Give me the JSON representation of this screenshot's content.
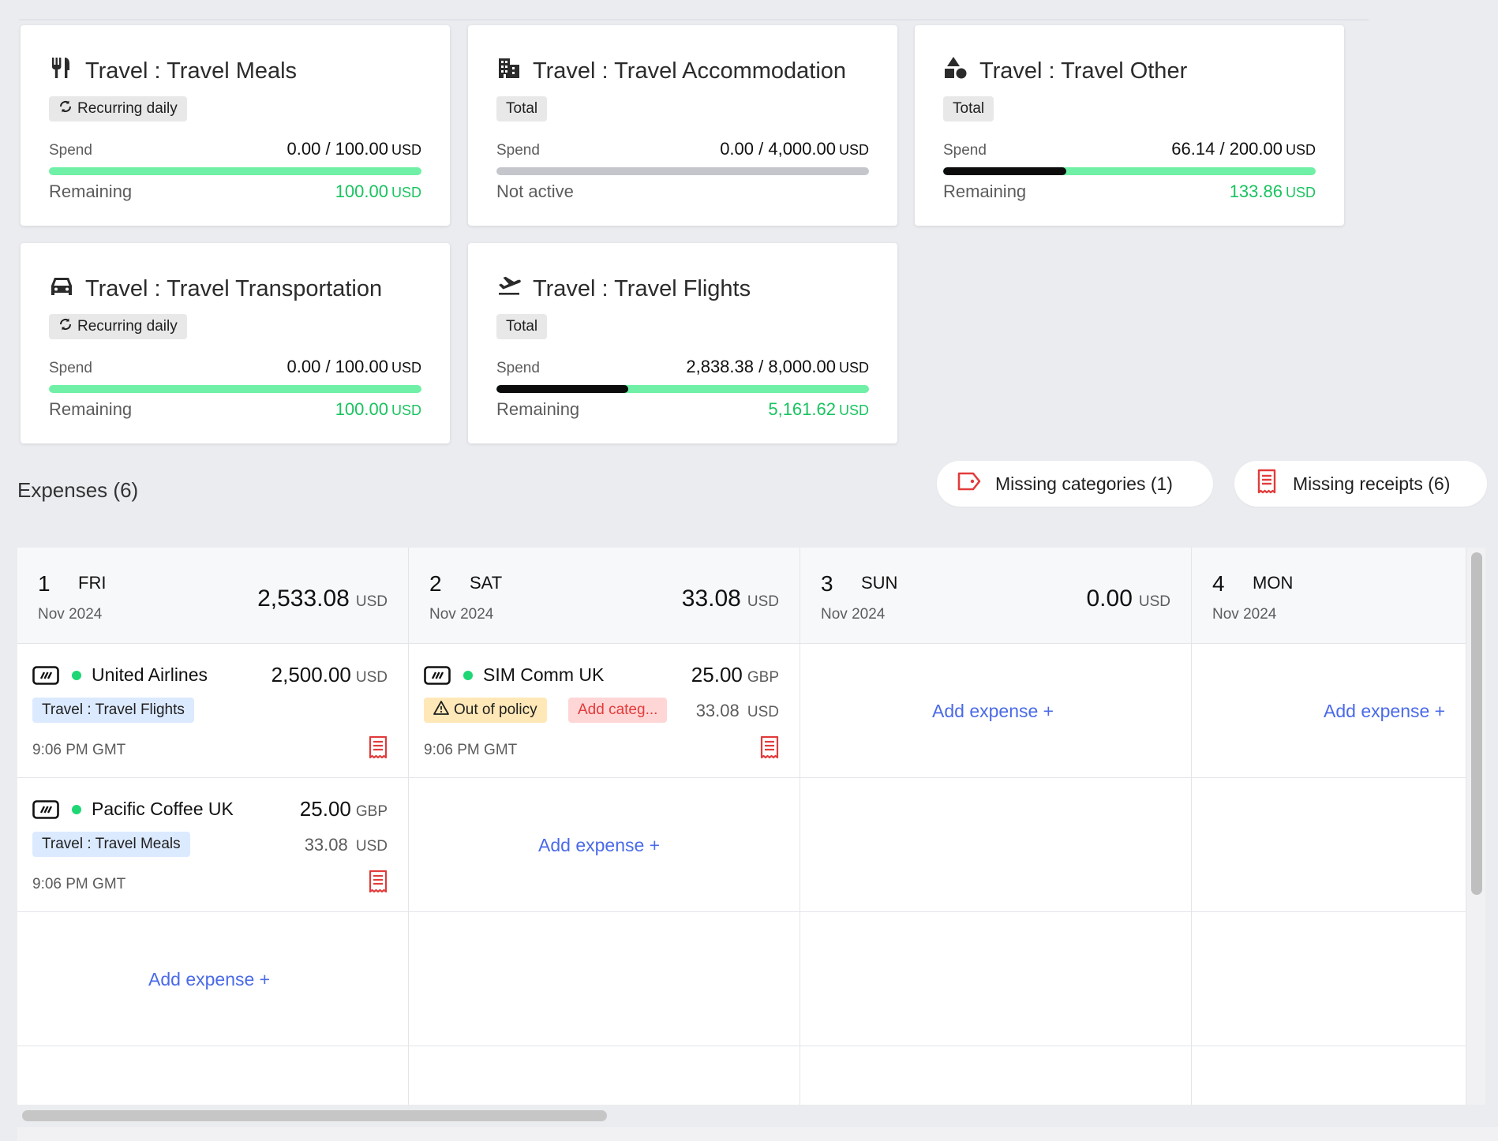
{
  "budgets": [
    {
      "title": "Travel : Travel Meals",
      "icon": "fork-knife-icon",
      "badge": "Recurring daily",
      "badge_icon": "recurring-icon",
      "spend_label": "Spend",
      "spend_value": "0.00 / 100.00",
      "currency": "USD",
      "progress_fraction": 0.0,
      "active": true,
      "remaining_label": "Remaining",
      "remaining_value": "100.00"
    },
    {
      "title": "Travel : Travel Accommodation",
      "icon": "building-icon",
      "badge": "Total",
      "spend_label": "Spend",
      "spend_value": "0.00 / 4,000.00",
      "currency": "USD",
      "progress_fraction": 0.0,
      "active": false,
      "remaining_label": "Not active",
      "remaining_value": ""
    },
    {
      "title": "Travel : Travel Other",
      "icon": "shapes-icon",
      "badge": "Total",
      "spend_label": "Spend",
      "spend_value": "66.14 / 200.00",
      "currency": "USD",
      "progress_fraction": 0.3307,
      "active": true,
      "remaining_label": "Remaining",
      "remaining_value": "133.86"
    },
    {
      "title": "Travel : Travel Transportation",
      "icon": "car-icon",
      "badge": "Recurring daily",
      "badge_icon": "recurring-icon",
      "spend_label": "Spend",
      "spend_value": "0.00 / 100.00",
      "currency": "USD",
      "progress_fraction": 0.0,
      "active": true,
      "remaining_label": "Remaining",
      "remaining_value": "100.00"
    },
    {
      "title": "Travel : Travel Flights",
      "icon": "plane-takeoff-icon",
      "badge": "Total",
      "spend_label": "Spend",
      "spend_value": "2,838.38 / 8,000.00",
      "currency": "USD",
      "progress_fraction": 0.3548,
      "active": true,
      "remaining_label": "Remaining",
      "remaining_value": "5,161.62"
    }
  ],
  "expenses_header": {
    "title": "Expenses (6)",
    "missing_categories": "Missing categories (1)",
    "missing_receipts": "Missing receipts (6)"
  },
  "colors": {
    "accent_green": "#19c35f",
    "bar_green": "#6ff0a6",
    "link_blue": "#4a6ae8",
    "alert_red": "#e23b3b"
  },
  "add_expense_label": "Add expense +",
  "days": [
    {
      "num": "1",
      "name": "FRI",
      "month": "Nov 2024",
      "total": "2,533.08",
      "currency": "USD",
      "expenses": [
        {
          "merchant": "United Airlines",
          "amount": "2,500.00",
          "currency": "USD",
          "tag": "Travel : Travel Flights",
          "time": "9:06 PM GMT"
        },
        {
          "merchant": "Pacific Coffee UK",
          "amount": "25.00",
          "currency": "GBP",
          "tag": "Travel : Travel Meals",
          "converted": "33.08",
          "converted_currency": "USD",
          "time": "9:06 PM GMT"
        }
      ]
    },
    {
      "num": "2",
      "name": "SAT",
      "month": "Nov 2024",
      "total": "33.08",
      "currency": "USD",
      "expenses": [
        {
          "merchant": "SIM Comm UK",
          "amount": "25.00",
          "currency": "GBP",
          "policy": "Out of policy",
          "add_category": "Add categ...",
          "converted": "33.08",
          "converted_currency": "USD",
          "time": "9:06 PM GMT"
        }
      ]
    },
    {
      "num": "3",
      "name": "SUN",
      "month": "Nov 2024",
      "total": "0.00",
      "currency": "USD",
      "expenses": []
    },
    {
      "num": "4",
      "name": "MON",
      "month": "Nov 2024",
      "total": "",
      "currency": "",
      "expenses": []
    }
  ]
}
